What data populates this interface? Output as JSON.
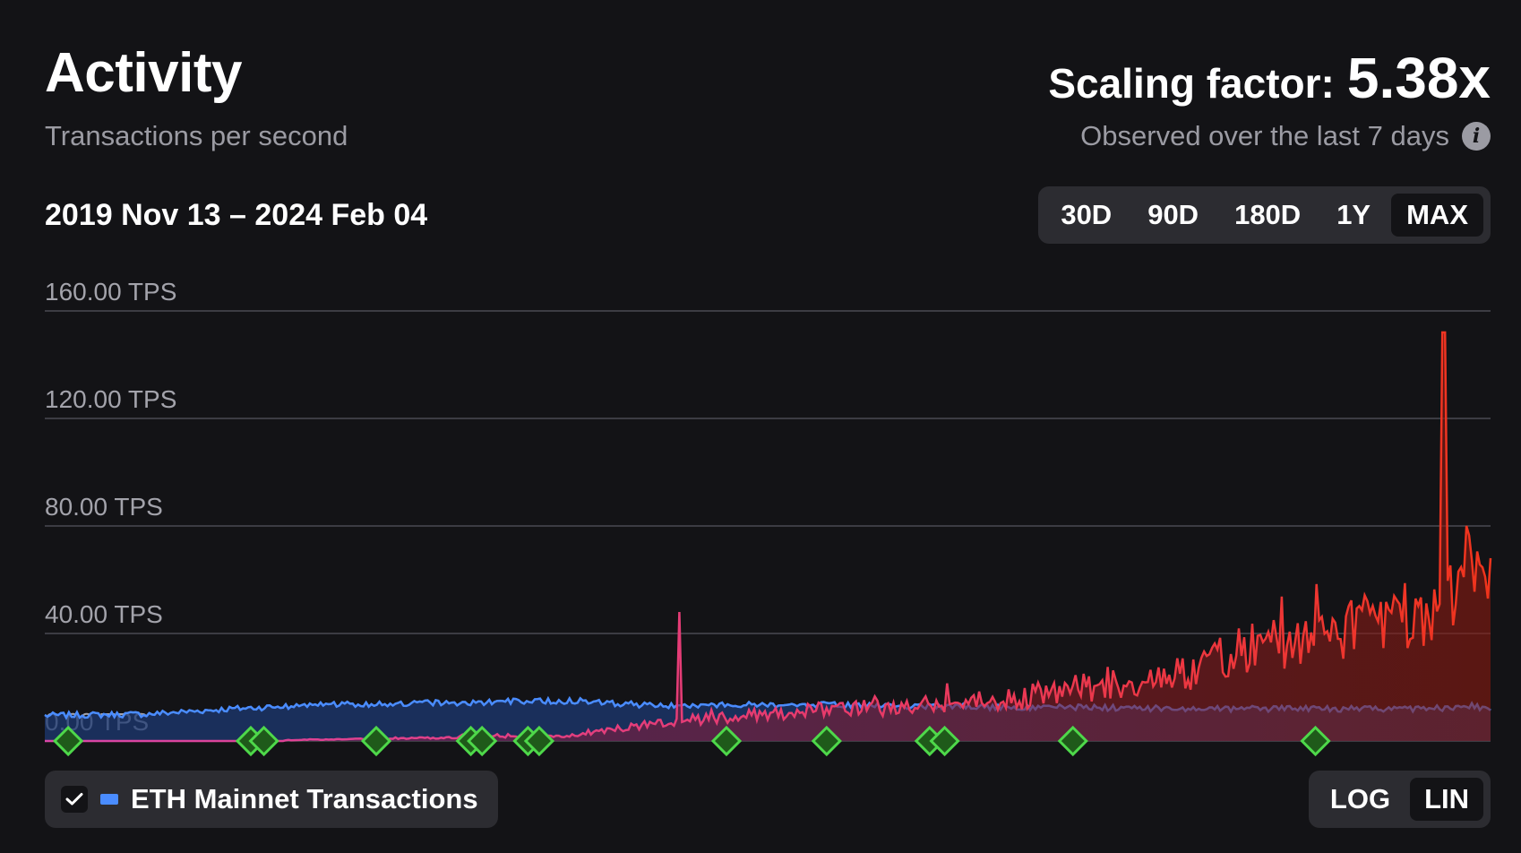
{
  "header": {
    "title": "Activity",
    "subtitle": "Transactions per second",
    "scaling_label": "Scaling factor:",
    "scaling_value": "5.38x",
    "observed_text": "Observed over the last 7 days",
    "info_icon": "info-icon"
  },
  "date_range": "2019 Nov 13 – 2024 Feb 04",
  "range_buttons": [
    {
      "label": "30D",
      "active": false
    },
    {
      "label": "90D",
      "active": false
    },
    {
      "label": "180D",
      "active": false
    },
    {
      "label": "1Y",
      "active": false
    },
    {
      "label": "MAX",
      "active": true
    }
  ],
  "legend": {
    "checked": true,
    "check_icon": "check-icon",
    "label": "ETH Mainnet Transactions"
  },
  "scale_buttons": [
    {
      "label": "LOG",
      "active": false
    },
    {
      "label": "LIN",
      "active": true
    }
  ],
  "colors": {
    "background": "#131316",
    "panel": "#2c2c31",
    "eth_line": "#4a8cff",
    "eth_fill": "#1e3a73",
    "l2_start": "#d946a8",
    "l2_end": "#f0341c",
    "milestone": "#4ed84a",
    "grid": "#4a4a52",
    "axis_text": "#a3a3ab"
  },
  "chart_data": {
    "type": "area",
    "title": "Activity",
    "ylabel": "Transactions per second",
    "ylim": [
      0,
      160
    ],
    "grid": true,
    "y_ticks": [
      "0.00 TPS",
      "40.00 TPS",
      "80.00 TPS",
      "120.00 TPS",
      "160.00 TPS"
    ],
    "x_range": [
      "2019-11-13",
      "2024-02-04"
    ],
    "x": [
      "2019-11-13",
      "2020-03-01",
      "2020-06-01",
      "2020-09-01",
      "2020-12-01",
      "2021-03-01",
      "2021-06-01",
      "2021-09-01",
      "2021-12-01",
      "2022-03-01",
      "2022-06-01",
      "2022-09-01",
      "2022-12-01",
      "2023-03-01",
      "2023-06-01",
      "2023-09-01",
      "2023-12-01",
      "2024-01-15",
      "2024-02-04"
    ],
    "series": [
      {
        "name": "ETH Mainnet Transactions",
        "values": [
          9.5,
          10,
          12,
          13.5,
          14,
          14.5,
          15,
          13,
          13.5,
          13.5,
          13,
          12.5,
          12.5,
          12,
          12,
          12,
          12,
          13,
          12
        ]
      },
      {
        "values": [
          0,
          0,
          0,
          0.5,
          1,
          1.5,
          2,
          7,
          10,
          12,
          13,
          15,
          20,
          24,
          35,
          42,
          48,
          62,
          55
        ]
      }
    ],
    "peaks": [
      {
        "x": "2021-09-20",
        "y": 48
      },
      {
        "x": "2023-12-16",
        "y": 152
      },
      {
        "x": "2024-01-10",
        "y": 80
      }
    ],
    "milestones": [
      "2019-12-08",
      "2020-06-20",
      "2020-07-04",
      "2020-11-01",
      "2021-02-10",
      "2021-02-22",
      "2021-04-12",
      "2021-04-24",
      "2021-11-10",
      "2022-02-25",
      "2022-06-15",
      "2022-07-01",
      "2022-11-15",
      "2023-08-01"
    ]
  }
}
